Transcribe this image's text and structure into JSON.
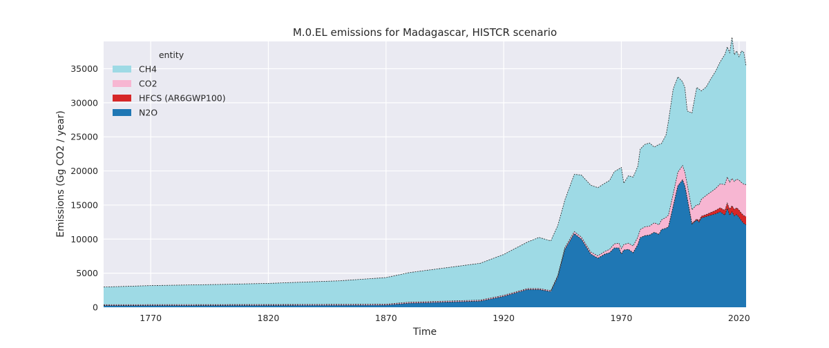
{
  "chart_data": {
    "type": "area",
    "stacked": true,
    "title": "M.0.EL emissions for Madagascar, HISTCR scenario",
    "xlabel": "Time",
    "ylabel": "Emissions (Gg CO2 / year)",
    "xlim": [
      1750,
      2023
    ],
    "ylim": [
      0,
      39000
    ],
    "xticks": [
      1770,
      1820,
      1870,
      1920,
      1970,
      2020
    ],
    "yticks": [
      0,
      5000,
      10000,
      15000,
      20000,
      25000,
      30000,
      35000
    ],
    "grid": true,
    "legend": {
      "title": "entity",
      "placement": "top-left"
    },
    "x": [
      1750,
      1770,
      1800,
      1820,
      1850,
      1870,
      1880,
      1900,
      1910,
      1920,
      1930,
      1935,
      1940,
      1943,
      1946,
      1950,
      1953,
      1957,
      1960,
      1963,
      1965,
      1967,
      1969,
      1970,
      1971,
      1973,
      1975,
      1977,
      1978,
      1980,
      1982,
      1984,
      1986,
      1987,
      1989,
      1990,
      1992,
      1994,
      1996,
      1997,
      1998,
      2000,
      2002,
      2003,
      2004,
      2006,
      2008,
      2010,
      2012,
      2014,
      2015,
      2016,
      2017,
      2018,
      2019,
      2020,
      2021,
      2022,
      2023
    ],
    "series": [
      {
        "name": "N2O",
        "color": "#1f77b4",
        "values": [
          250,
          260,
          270,
          280,
          290,
          320,
          600,
          800,
          900,
          1600,
          2600,
          2600,
          2300,
          4500,
          8500,
          10800,
          10000,
          7800,
          7200,
          7800,
          8000,
          8700,
          8700,
          7800,
          8400,
          8500,
          8000,
          9200,
          10200,
          10500,
          10600,
          11000,
          10700,
          11400,
          11600,
          11800,
          14800,
          17800,
          18700,
          17800,
          16000,
          12200,
          12800,
          12500,
          13100,
          13300,
          13500,
          13700,
          14000,
          13500,
          14500,
          13500,
          14000,
          13400,
          13600,
          13200,
          12700,
          12300,
          12100
        ]
      },
      {
        "name": "HFCS (AR6GWP100)",
        "color": "#d62728",
        "values": [
          0,
          0,
          0,
          0,
          0,
          0,
          0,
          0,
          0,
          0,
          0,
          0,
          0,
          0,
          0,
          0,
          0,
          0,
          0,
          0,
          0,
          0,
          0,
          0,
          0,
          0,
          0,
          0,
          0,
          0,
          0,
          0,
          0,
          0,
          0,
          0,
          0,
          0,
          0,
          0,
          0,
          100,
          150,
          200,
          250,
          300,
          400,
          500,
          600,
          700,
          800,
          850,
          900,
          950,
          1000,
          1050,
          1100,
          1150,
          1200
        ]
      },
      {
        "name": "CO2",
        "color": "#f7b6d2",
        "values": [
          120,
          120,
          130,
          130,
          140,
          140,
          150,
          150,
          150,
          150,
          150,
          150,
          150,
          200,
          250,
          300,
          300,
          300,
          350,
          400,
          500,
          600,
          700,
          800,
          800,
          900,
          1000,
          1100,
          1200,
          1300,
          1300,
          1400,
          1400,
          1400,
          1600,
          1700,
          1800,
          2000,
          2100,
          2000,
          2000,
          2000,
          2100,
          2300,
          2500,
          2800,
          3000,
          3200,
          3500,
          3800,
          3800,
          4000,
          4000,
          4100,
          4200,
          4400,
          4500,
          4600,
          4700
        ]
      },
      {
        "name": "CH4",
        "color": "#9edae5",
        "values": [
          2600,
          2800,
          2950,
          3100,
          3450,
          3900,
          4350,
          5050,
          5400,
          6000,
          6800,
          7500,
          7300,
          7300,
          7000,
          8400,
          9100,
          9800,
          10000,
          10000,
          10100,
          10600,
          10900,
          11900,
          9000,
          9900,
          10100,
          10400,
          11800,
          12100,
          12200,
          11100,
          11800,
          11200,
          12100,
          13800,
          15400,
          14000,
          12300,
          12400,
          10800,
          14200,
          17200,
          17000,
          15900,
          15900,
          16600,
          17200,
          17900,
          19100,
          19100,
          19000,
          20700,
          18600,
          18800,
          18100,
          19300,
          19400,
          17400
        ]
      }
    ]
  }
}
